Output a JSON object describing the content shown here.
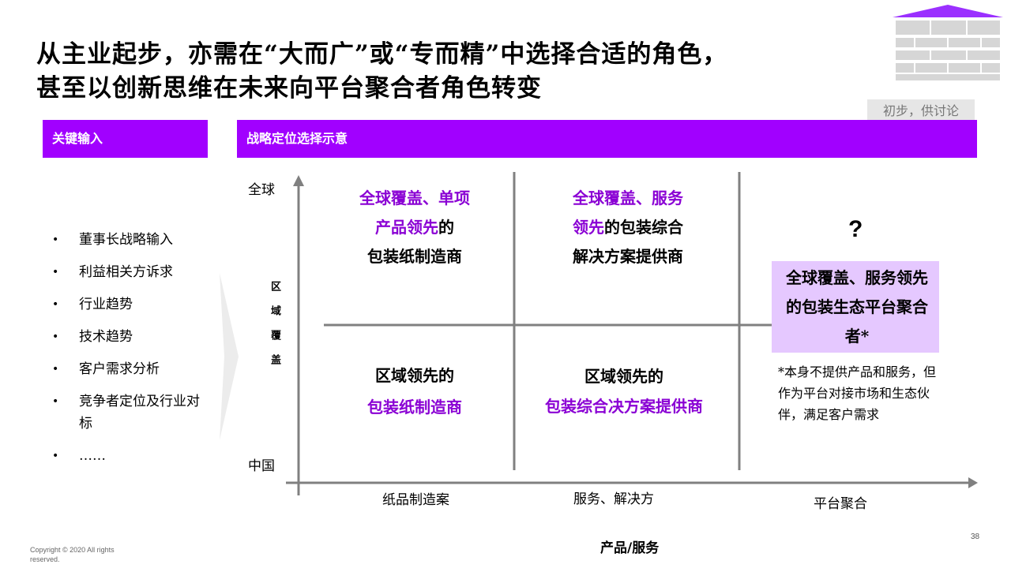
{
  "title": {
    "line1": "从主业起步，亦需在“大而广”或“专而精”中选择合适的角色，",
    "line2": "甚至以创新思维在未来向平台聚合者角色转变"
  },
  "tag": "初步，供讨论",
  "left_panel": {
    "header": "关键输入",
    "items": [
      "董事长战略输入",
      "利益相关方诉求",
      "行业趋势",
      "技术趋势",
      "客户需求分析",
      "竞争者定位及行业对标",
      "……"
    ]
  },
  "right_panel": {
    "header": "战略定位选择示意"
  },
  "matrix": {
    "y_axis": {
      "top": "全球",
      "bottom": "中国",
      "label": "区域覆盖"
    },
    "x_axis": {
      "label": "产品/服务",
      "cols": [
        "纸品制造案",
        "服务、解决方",
        "平台聚合"
      ]
    },
    "cells": {
      "top_left": {
        "purple": "全球覆盖、单项产品领先",
        "black_a": "的",
        "black_b": "包装纸制造商"
      },
      "top_middle": {
        "purple_a": "全球覆盖、服务",
        "purple_b": "领先",
        "black_a": "的包装综合",
        "black_b": "解决方案提供商"
      },
      "top_right": {
        "question": "?",
        "box": "全球覆盖、服务领先的包装生态平台聚合者*"
      },
      "bottom_left": {
        "black_a": "区域领先的",
        "purple": "包装纸制造商"
      },
      "bottom_middle": {
        "black_a": "区域领先的",
        "purple": "包装综合决方案提供商"
      }
    },
    "footnote": "*本身不提供产品和服务，但作为平台对接市场和生态伙伴，满足客户需求"
  },
  "colors": {
    "accent": "#A100FF",
    "highlight_box": "#E5C8FF",
    "axis": "#808080",
    "tag_bg": "#E6E6E6"
  },
  "footer": {
    "copyright": "Copyright © 2020 All rights reserved.",
    "page": "38"
  }
}
